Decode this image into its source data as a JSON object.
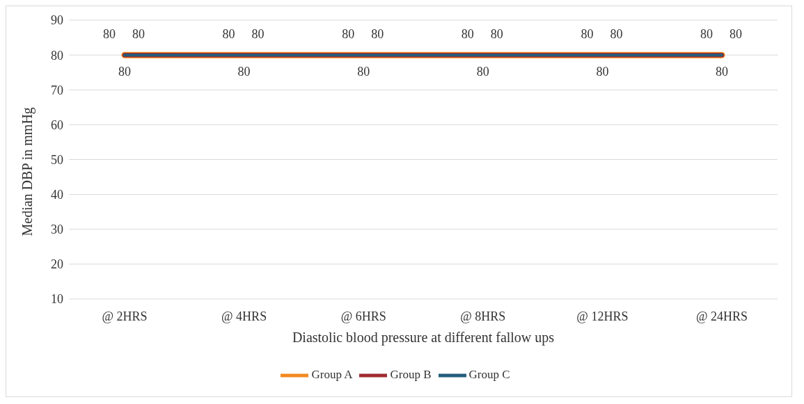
{
  "chart_data": {
    "type": "line",
    "xlabel": "Diastolic blood pressure at different fallow ups",
    "ylabel": "Median DBP in mmHg",
    "categories": [
      "@ 2HRS",
      "@ 4HRS",
      "@ 6HRS",
      "@ 8HRS",
      "@ 12HRS",
      "@ 24HRS"
    ],
    "series": [
      {
        "name": "Group A",
        "color": "#f28a1e",
        "values": [
          80,
          80,
          80,
          80,
          80,
          80
        ]
      },
      {
        "name": "Group B",
        "color": "#a02b32",
        "values": [
          80,
          80,
          80,
          80,
          80,
          80
        ]
      },
      {
        "name": "Group C",
        "color": "#245d7c",
        "values": [
          80,
          80,
          80,
          80,
          80,
          80
        ]
      }
    ],
    "ylim": [
      10,
      90
    ],
    "yticks": [
      10,
      20,
      30,
      40,
      50,
      60,
      70,
      80,
      90
    ],
    "grid": "y",
    "legend": "bottom",
    "data_labels": true,
    "marker": "none",
    "line_style": "solid"
  }
}
